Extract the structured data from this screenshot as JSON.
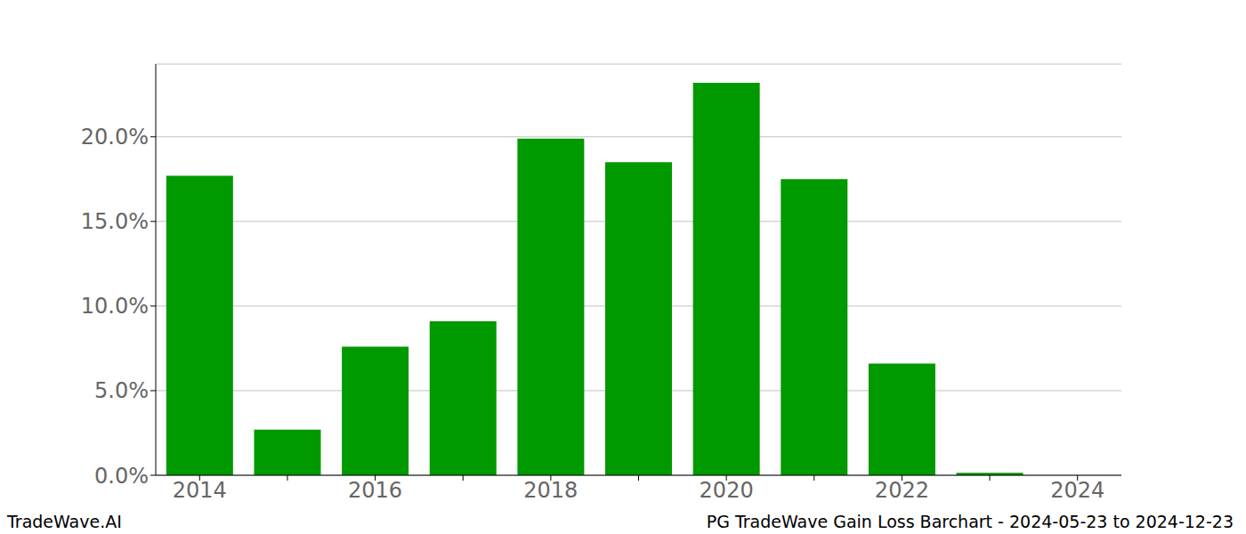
{
  "chart_data": {
    "type": "bar",
    "annotations": [
      "TradeWave.AI",
      "PG TradeWave Gain Loss Barchart - 2024-05-23 to 2024-12-23"
    ],
    "categories": [
      "2014",
      null,
      "2016",
      null,
      "2018",
      null,
      "2020",
      null,
      "2022",
      null,
      "2024"
    ],
    "values": [
      17.7,
      2.7,
      7.6,
      9.1,
      19.9,
      18.5,
      23.2,
      17.5,
      6.6,
      0.15,
      0
    ],
    "color": "#009900",
    "ylim": [
      0,
      24.3
    ],
    "yticks": [
      {
        "value": 0,
        "label": "0.0%"
      },
      {
        "value": 5,
        "label": "5.0%"
      },
      {
        "value": 10,
        "label": "10.0%"
      },
      {
        "value": 15,
        "label": "15.0%"
      },
      {
        "value": 20,
        "label": "20.0%"
      }
    ],
    "grid": true
  }
}
